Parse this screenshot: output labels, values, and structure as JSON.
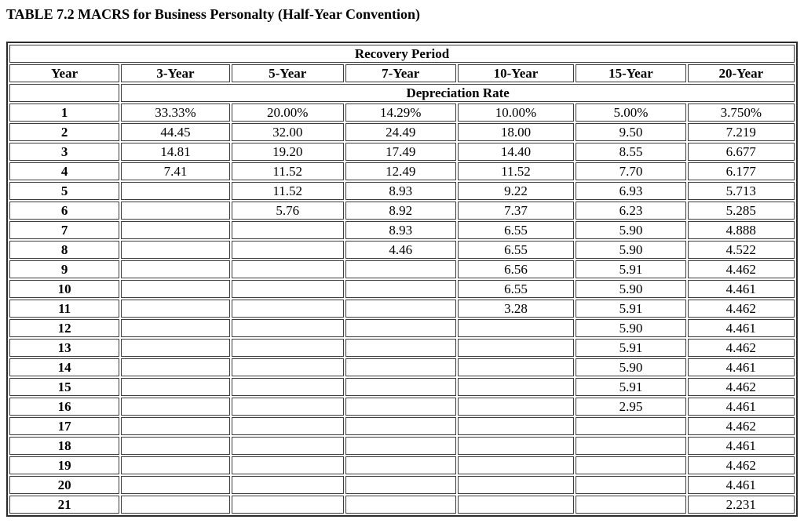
{
  "page_title": "TABLE 7.2 MACRS for Business Personalty (Half-Year Convention)",
  "colors": {
    "background": "#ffffff",
    "text": "#000000",
    "inner_border": "#3d3d3d",
    "outer_border": "#2b2b2b"
  },
  "table": {
    "span_header": "Recovery Period",
    "sub_header": "Depreciation Rate",
    "columns": [
      "Year",
      "3-Year",
      "5-Year",
      "7-Year",
      "10-Year",
      "15-Year",
      "20-Year"
    ],
    "rows": [
      {
        "year": "1",
        "values": [
          "33.33%",
          "20.00%",
          "14.29%",
          "10.00%",
          "5.00%",
          "3.750%"
        ]
      },
      {
        "year": "2",
        "values": [
          "44.45",
          "32.00",
          "24.49",
          "18.00",
          "9.50",
          "7.219"
        ]
      },
      {
        "year": "3",
        "values": [
          "14.81",
          "19.20",
          "17.49",
          "14.40",
          "8.55",
          "6.677"
        ]
      },
      {
        "year": "4",
        "values": [
          "7.41",
          "11.52",
          "12.49",
          "11.52",
          "7.70",
          "6.177"
        ]
      },
      {
        "year": "5",
        "values": [
          "",
          "11.52",
          "8.93",
          "9.22",
          "6.93",
          "5.713"
        ]
      },
      {
        "year": "6",
        "values": [
          "",
          "5.76",
          "8.92",
          "7.37",
          "6.23",
          "5.285"
        ]
      },
      {
        "year": "7",
        "values": [
          "",
          "",
          "8.93",
          "6.55",
          "5.90",
          "4.888"
        ]
      },
      {
        "year": "8",
        "values": [
          "",
          "",
          "4.46",
          "6.55",
          "5.90",
          "4.522"
        ]
      },
      {
        "year": "9",
        "values": [
          "",
          "",
          "",
          "6.56",
          "5.91",
          "4.462"
        ]
      },
      {
        "year": "10",
        "values": [
          "",
          "",
          "",
          "6.55",
          "5.90",
          "4.461"
        ]
      },
      {
        "year": "11",
        "values": [
          "",
          "",
          "",
          "3.28",
          "5.91",
          "4.462"
        ]
      },
      {
        "year": "12",
        "values": [
          "",
          "",
          "",
          "",
          "5.90",
          "4.461"
        ]
      },
      {
        "year": "13",
        "values": [
          "",
          "",
          "",
          "",
          "5.91",
          "4.462"
        ]
      },
      {
        "year": "14",
        "values": [
          "",
          "",
          "",
          "",
          "5.90",
          "4.461"
        ]
      },
      {
        "year": "15",
        "values": [
          "",
          "",
          "",
          "",
          "5.91",
          "4.462"
        ]
      },
      {
        "year": "16",
        "values": [
          "",
          "",
          "",
          "",
          "2.95",
          "4.461"
        ]
      },
      {
        "year": "17",
        "values": [
          "",
          "",
          "",
          "",
          "",
          "4.462"
        ]
      },
      {
        "year": "18",
        "values": [
          "",
          "",
          "",
          "",
          "",
          "4.461"
        ]
      },
      {
        "year": "19",
        "values": [
          "",
          "",
          "",
          "",
          "",
          "4.462"
        ]
      },
      {
        "year": "20",
        "values": [
          "",
          "",
          "",
          "",
          "",
          "4.461"
        ]
      },
      {
        "year": "21",
        "values": [
          "",
          "",
          "",
          "",
          "",
          "2.231"
        ]
      }
    ]
  }
}
